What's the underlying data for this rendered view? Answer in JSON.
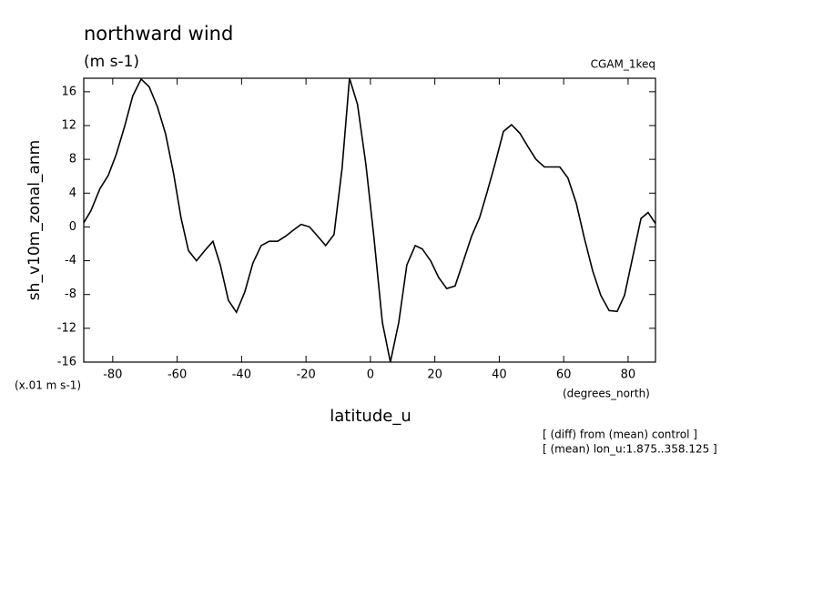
{
  "chart_data": {
    "type": "line",
    "title": "northward wind",
    "subtitle": "(m s-1)",
    "run_label": "CGAM_1keq",
    "y_label": "sh_v10m_zonal_anm",
    "y_units": "(x.01 m s-1)",
    "x_label": "latitude_u",
    "x_units": "(degrees_north)",
    "notes": [
      "[ (diff) from (mean) control ]",
      "[ (mean) lon_u:1.875..358.125 ]"
    ],
    "xlim": [
      -89,
      88.5
    ],
    "ylim": [
      -16,
      17.6
    ],
    "xticks": [
      -80,
      -60,
      -40,
      -20,
      0,
      20,
      40,
      60,
      80
    ],
    "yticks": [
      -16,
      -12,
      -8,
      -4,
      0,
      4,
      8,
      12,
      16
    ],
    "color": "#000000",
    "x": [
      -89,
      -86.8,
      -84,
      -81.4,
      -78.9,
      -76.3,
      -73.8,
      -71.2,
      -68.7,
      -66.1,
      -63.6,
      -61.1,
      -58.8,
      -56.5,
      -54,
      -51.4,
      -48.9,
      -46.6,
      -44.1,
      -41.6,
      -39,
      -36.5,
      -33.9,
      -31.4,
      -28.8,
      -26.3,
      -24,
      -21.5,
      -18.9,
      -16.4,
      -13.9,
      -11.3,
      -8.8,
      -6.5,
      -4,
      -1.4,
      1.1,
      3.7,
      6.2,
      8.8,
      11.3,
      13.9,
      16.1,
      18.7,
      21.2,
      23.7,
      26.3,
      28.8,
      31.4,
      33.9,
      36.2,
      38.7,
      41.3,
      43.8,
      46.4,
      48.9,
      51.4,
      54,
      56.3,
      58.8,
      61.3,
      63.9,
      66.4,
      69,
      71.5,
      74.1,
      76.6,
      78.9,
      81.4,
      84,
      86.2,
      88.5
    ],
    "values": [
      0.5,
      1.9,
      4.5,
      6.1,
      8.6,
      11.9,
      15.5,
      17.5,
      16.6,
      14.2,
      11.0,
      6.3,
      1.1,
      -2.8,
      -4.0,
      -2.8,
      -1.7,
      -4.5,
      -8.7,
      -10.1,
      -7.7,
      -4.3,
      -2.2,
      -1.7,
      -1.7,
      -1.1,
      -0.4,
      0.3,
      0,
      -1.1,
      -2.2,
      -0.9,
      6.9,
      17.6,
      14.5,
      7.4,
      -1.3,
      -11.3,
      -16,
      -11.3,
      -4.5,
      -2.2,
      -2.6,
      -4.0,
      -6.0,
      -7.3,
      -7.0,
      -4.1,
      -1.1,
      1.1,
      4.1,
      7.5,
      11.3,
      12.1,
      11.1,
      9.5,
      8.0,
      7.1,
      7.1,
      7.1,
      5.8,
      2.8,
      -1.3,
      -5.2,
      -8.1,
      -9.9,
      -10.0,
      -8.1,
      -3.6,
      1.0,
      1.7,
      0.4
    ]
  }
}
